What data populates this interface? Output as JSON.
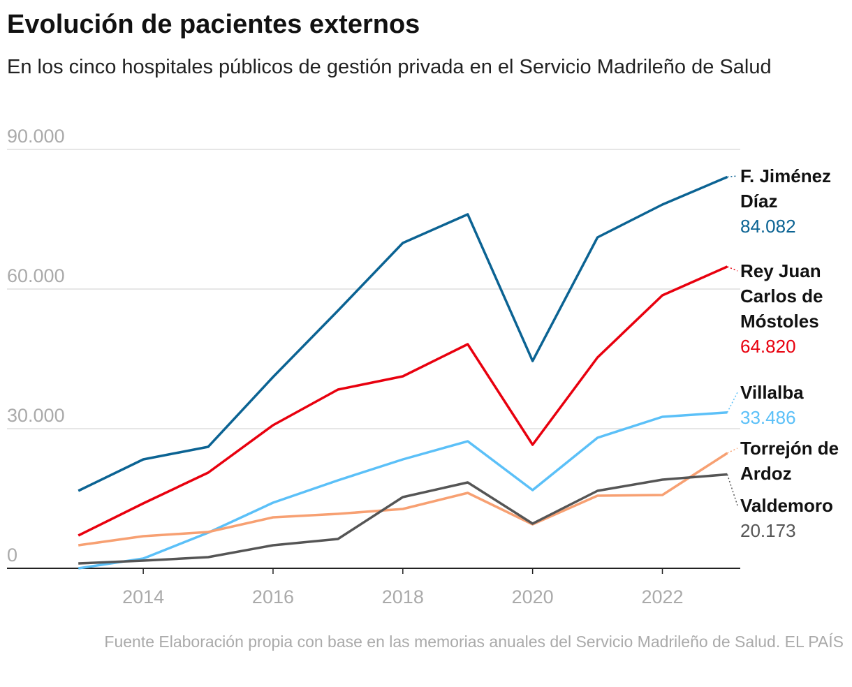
{
  "chart_data": {
    "type": "line",
    "title": "Evolución de pacientes externos",
    "subtitle": "En los cinco hospitales públicos de gestión privada en el Servicio Madrileño de Salud",
    "source": "Fuente Elaboración propia con base en las memorias anuales del Servicio Madrileño de Salud. EL PAÍS",
    "x": [
      2013,
      2014,
      2015,
      2016,
      2017,
      2018,
      2019,
      2020,
      2021,
      2022,
      2023
    ],
    "xlim": [
      2011.9,
      2023.2
    ],
    "xticks": [
      2014,
      2016,
      2018,
      2020,
      2022
    ],
    "ylim": [
      0,
      90000
    ],
    "yticks": [
      0,
      {
        "value": 30000,
        "label": "30.000"
      },
      {
        "value": 60000,
        "label": "60.000"
      },
      {
        "value": 90000,
        "label": "90.000"
      }
    ],
    "grid": true,
    "series": [
      {
        "name": "F. Jiménez Díaz",
        "color": "#0b6393",
        "values": [
          16650,
          23400,
          26100,
          41100,
          55350,
          69900,
          76050,
          44550,
          71100,
          78150,
          84082
        ],
        "value_labels": [
          null,
          null,
          null,
          null,
          null,
          null,
          null,
          null,
          null,
          null,
          "84.082"
        ]
      },
      {
        "name": "Rey Juan Carlos de Móstoles",
        "color": "#e8000e",
        "values": [
          7050,
          13950,
          20550,
          30750,
          38400,
          41250,
          48150,
          26550,
          45300,
          58650,
          64820
        ],
        "value_labels": [
          null,
          null,
          null,
          null,
          null,
          null,
          null,
          null,
          null,
          null,
          "64.820"
        ]
      },
      {
        "name": "Villalba",
        "color": "#5bc0f8",
        "values": [
          0,
          2100,
          7650,
          14100,
          18900,
          23400,
          27300,
          16800,
          28050,
          32550,
          33486
        ],
        "value_labels": [
          null,
          null,
          null,
          null,
          null,
          null,
          null,
          null,
          null,
          null,
          "33.486"
        ]
      },
      {
        "name": "Torrejón de Ardoz",
        "color": "#f7a072",
        "values": [
          4950,
          6900,
          7800,
          10950,
          11700,
          12750,
          16200,
          9450,
          15600,
          15750,
          24750
        ]
      },
      {
        "name": "Valdemoro",
        "color": "#555555",
        "values": [
          1050,
          1650,
          2400,
          4950,
          6300,
          15300,
          18450,
          9600,
          16650,
          19050,
          20173
        ],
        "value_labels": [
          null,
          null,
          null,
          null,
          null,
          null,
          null,
          null,
          null,
          null,
          "20.173"
        ]
      }
    ]
  }
}
